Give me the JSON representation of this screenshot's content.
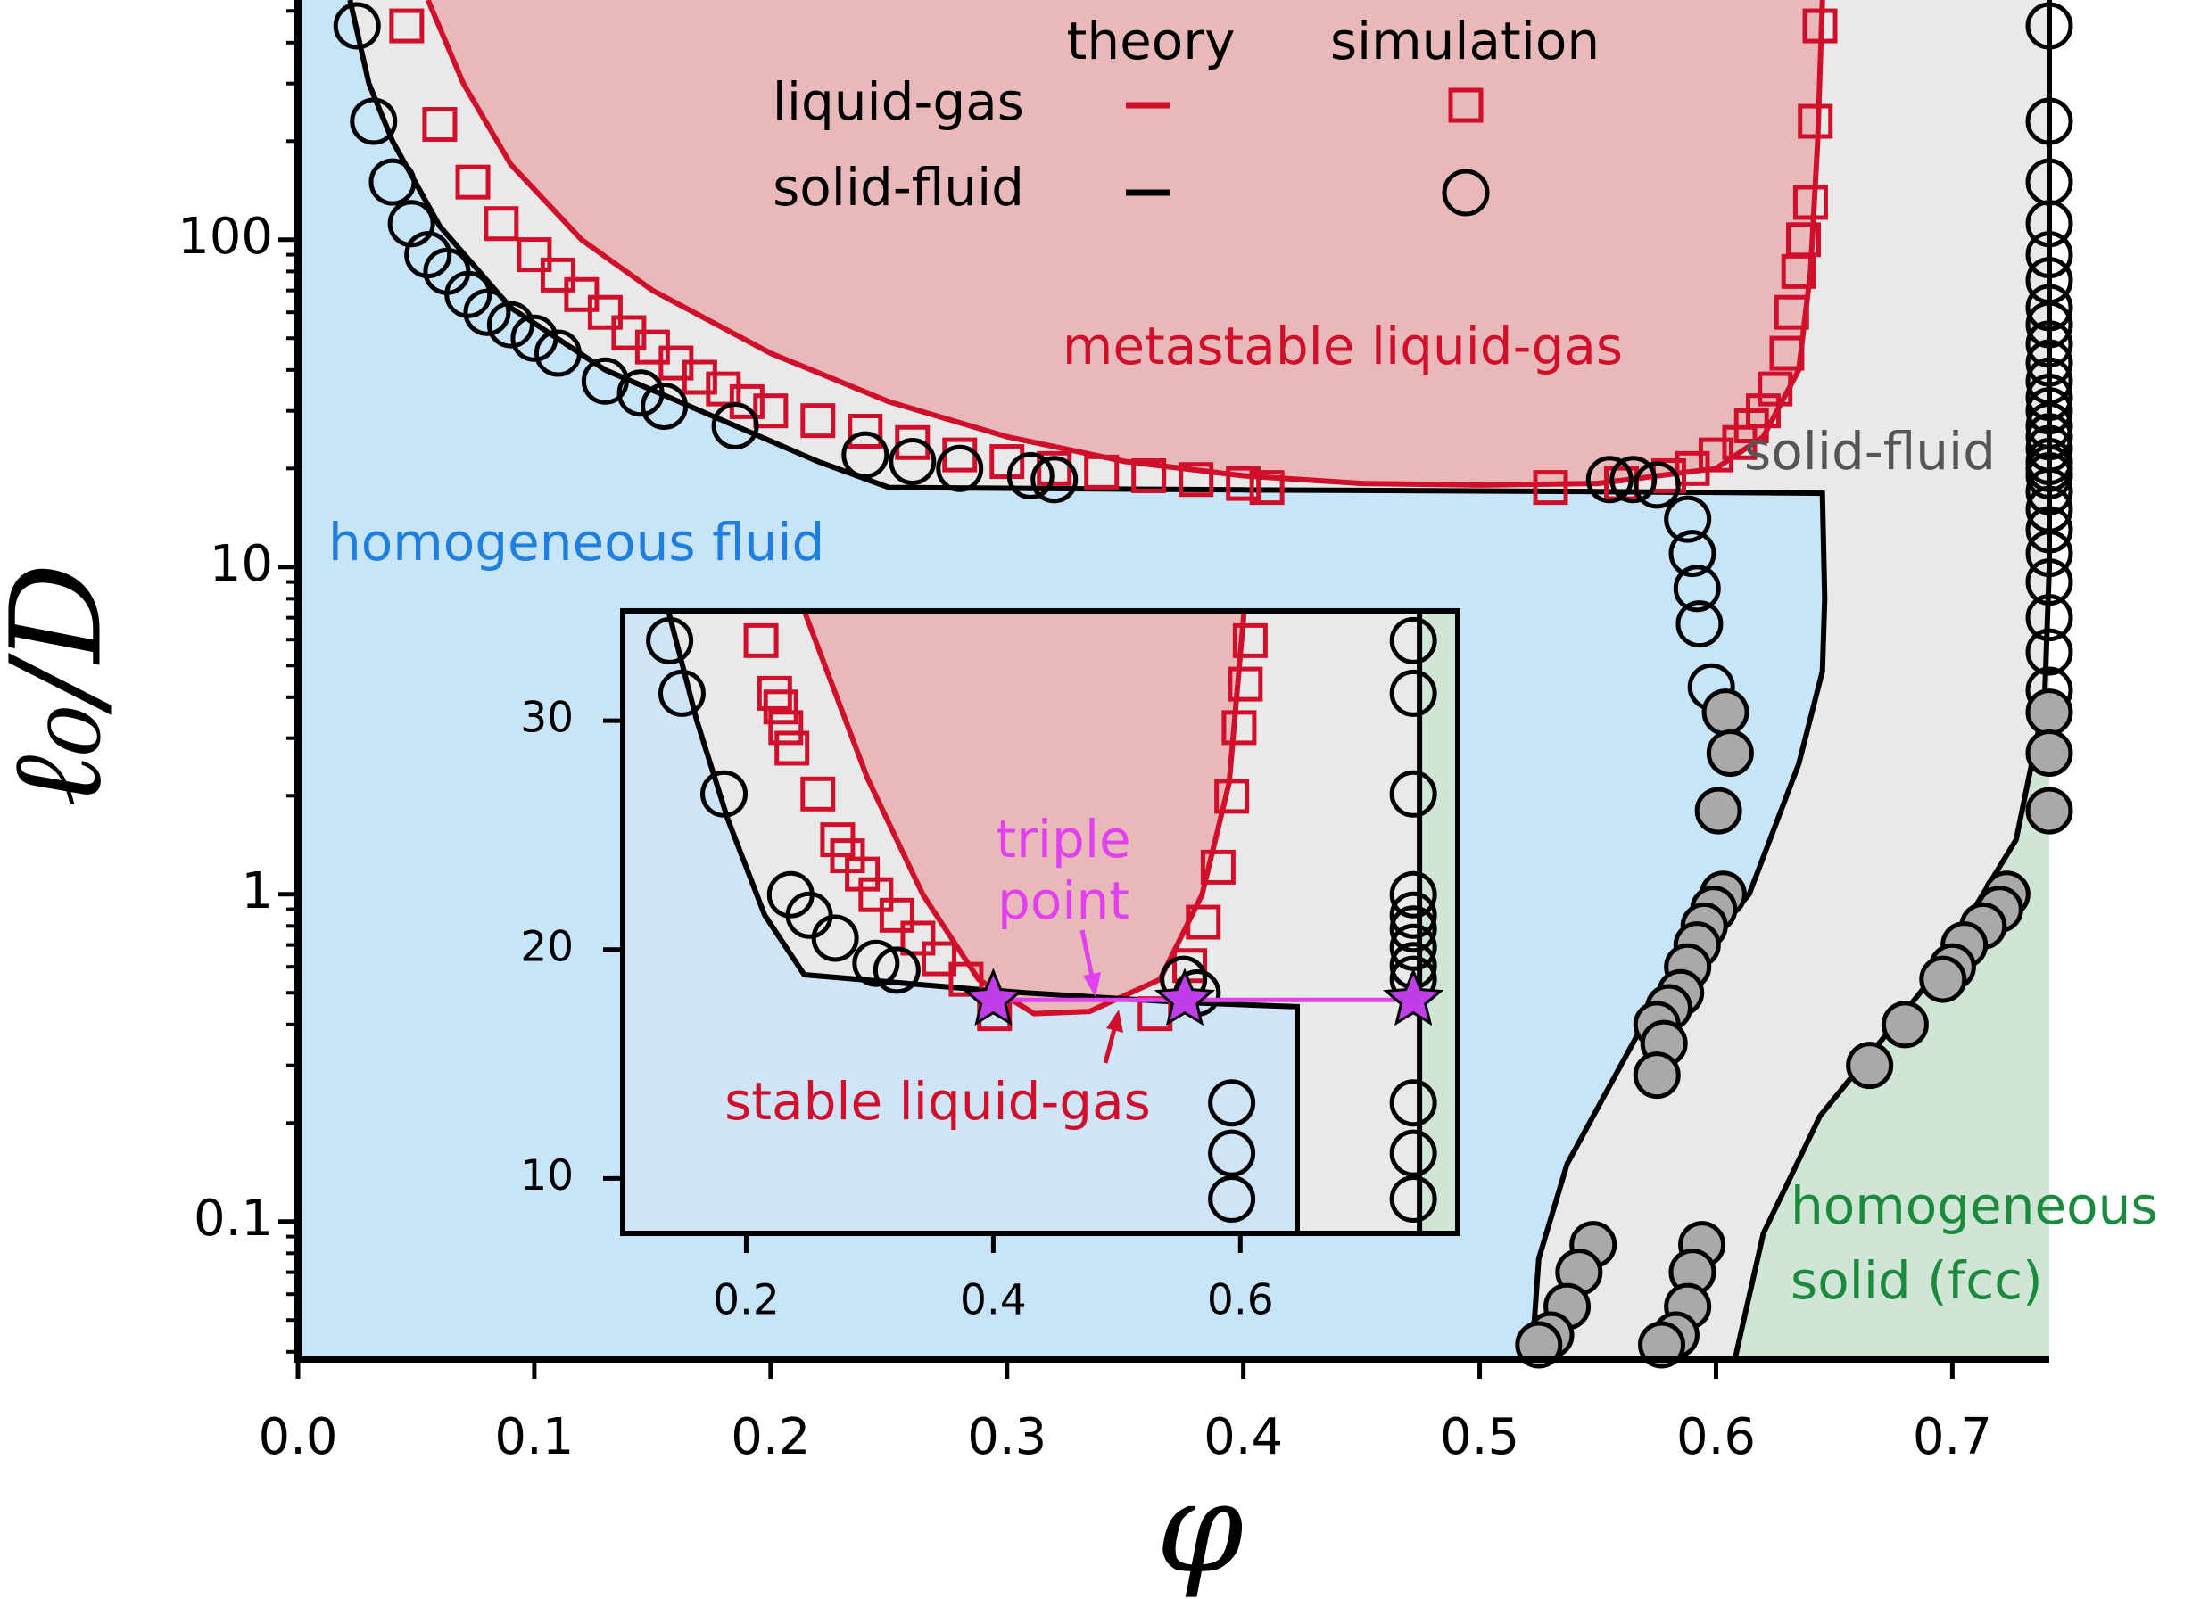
{
  "chart_data": [
    {
      "type": "phase-diagram",
      "x_label": "φ",
      "y_label": "ℓ₀/D",
      "ylog": true,
      "xlim": [
        0,
        0.741
      ],
      "ylim": [
        0.038,
        540
      ],
      "xticks": [
        {
          "value": 0,
          "label": "0.0"
        },
        0.1,
        0.2,
        0.3,
        0.4,
        0.5,
        0.6,
        0.7
      ],
      "yticks": [
        0.1,
        1,
        10,
        100
      ],
      "yminorticks": [
        0.04,
        0.05,
        0.06,
        0.07,
        0.08,
        0.09,
        0.2,
        0.3,
        0.4,
        0.5,
        0.6,
        0.7,
        0.8,
        0.9,
        2,
        3,
        4,
        5,
        6,
        7,
        8,
        9,
        20,
        30,
        40,
        50,
        60,
        70,
        80,
        90,
        200,
        300,
        400,
        500
      ],
      "legend": {
        "headers": [
          "theory",
          "simulation"
        ],
        "rows": [
          "liquid-gas",
          "solid-fluid"
        ]
      },
      "annotations": [
        "metastable liquid-gas",
        "solid-fluid",
        "homogeneous fluid",
        "homogeneous",
        "solid (fcc)"
      ],
      "series": [
        {
          "line": true,
          "color": "#d0102a",
          "x": [
            0.055,
            0.07,
            0.09,
            0.12,
            0.15,
            0.2,
            0.25,
            0.3,
            0.35,
            0.4,
            0.45,
            0.5,
            0.55,
            0.6,
            0.62,
            0.635,
            0.64,
            0.643,
            0.645
          ],
          "values": [
            540,
            300,
            170,
            100,
            70,
            45,
            32,
            25,
            21,
            19,
            18,
            17.8,
            18,
            20,
            25,
            40,
            80,
            200,
            540
          ]
        },
        {
          "line": true,
          "color": "#000000",
          "x": [
            0.022,
            0.03,
            0.04,
            0.06,
            0.09,
            0.13,
            0.18,
            0.22,
            0.25,
            0.4,
            0.55,
            0.645,
            0.646,
            0.645,
            0.635,
            0.614,
            0.573,
            0.537,
            0.525,
            0.522
          ],
          "values": [
            540,
            300,
            200,
            110,
            62,
            40,
            28,
            21,
            17.5,
            17.2,
            17,
            16.8,
            8,
            4.8,
            2.5,
            1.0,
            0.45,
            0.15,
            0.077,
            0.038
          ]
        },
        {
          "line": true,
          "color": "#000000",
          "x": [
            0.741,
            0.741,
            0.739,
            0.727,
            0.691,
            0.644,
            0.62,
            0.608
          ],
          "values": [
            540,
            10,
            3.9,
            1.47,
            0.55,
            0.21,
            0.092,
            0.038
          ]
        },
        {
          "marker": "square",
          "color": "#d0102a",
          "fill": "none",
          "x": [
            0.046,
            0.06,
            0.074,
            0.086,
            0.1,
            0.11,
            0.12,
            0.13,
            0.14,
            0.15,
            0.16,
            0.17,
            0.18,
            0.19,
            0.2,
            0.22,
            0.24,
            0.26,
            0.28,
            0.3,
            0.32,
            0.34,
            0.36,
            0.38,
            0.4,
            0.41,
            0.53,
            0.56,
            0.58,
            0.59,
            0.6,
            0.61,
            0.615,
            0.62,
            0.625,
            0.63,
            0.632,
            0.635,
            0.637,
            0.64,
            0.642,
            0.644
          ],
          "values": [
            450,
            225,
            150,
            112,
            90,
            78,
            68,
            60,
            52,
            47,
            42,
            38,
            35,
            32,
            30,
            28,
            26,
            24,
            22,
            21,
            20,
            19.5,
            19,
            18.5,
            18,
            17.5,
            17.5,
            18,
            19,
            20,
            22,
            24,
            27,
            30,
            35,
            45,
            60,
            80,
            100,
            130,
            230,
            450
          ]
        },
        {
          "marker": "circle",
          "color": "#000000",
          "fill": "none",
          "x": [
            0.025,
            0.032,
            0.04,
            0.048,
            0.055,
            0.063,
            0.072,
            0.08,
            0.09,
            0.1,
            0.11,
            0.13,
            0.145,
            0.155,
            0.185,
            0.24,
            0.26,
            0.28,
            0.31,
            0.32,
            0.555,
            0.565,
            0.575,
            0.588,
            0.59,
            0.592,
            0.593,
            0.598,
            0.741,
            0.741,
            0.741,
            0.741,
            0.741,
            0.741,
            0.741,
            0.741,
            0.741,
            0.741,
            0.741,
            0.741,
            0.741,
            0.741,
            0.741,
            0.741,
            0.741,
            0.741,
            0.741,
            0.741,
            0.741,
            0.741,
            0.741,
            0.741,
            0.741,
            0.741,
            0.741
          ],
          "values": [
            450,
            230,
            150,
            112,
            90,
            80,
            68,
            60,
            55,
            50,
            45,
            37,
            34,
            31,
            27,
            22,
            21,
            20,
            19,
            18.5,
            18.5,
            18.5,
            17.8,
            14,
            11,
            8.6,
            6.7,
            4.3,
            450,
            230,
            150,
            112,
            90,
            75,
            62,
            55,
            48,
            42,
            37,
            33,
            30,
            27,
            25,
            23,
            21,
            20,
            19,
            17,
            15,
            13,
            11,
            9,
            7,
            5.5,
            4.2
          ]
        },
        {
          "marker": "circle",
          "color": "#000000",
          "fill": "#a9a9a9",
          "x": [
            0.604,
            0.606,
            0.601,
            0.603,
            0.599,
            0.595,
            0.592,
            0.588,
            0.585,
            0.58,
            0.575,
            0.578,
            0.575,
            0.548,
            0.542,
            0.537,
            0.53,
            0.525,
            0.594,
            0.59,
            0.588,
            0.583,
            0.577,
            0.741,
            0.741,
            0.741,
            0.723,
            0.72,
            0.713,
            0.705,
            0.7,
            0.696,
            0.68,
            0.665
          ],
          "values": [
            3.6,
            2.7,
            1.8,
            1.0,
            0.9,
            0.8,
            0.7,
            0.6,
            0.5,
            0.45,
            0.4,
            0.35,
            0.28,
            0.085,
            0.07,
            0.055,
            0.045,
            0.042,
            0.085,
            0.07,
            0.055,
            0.045,
            0.042,
            3.6,
            2.7,
            1.8,
            1.0,
            0.9,
            0.8,
            0.7,
            0.6,
            0.55,
            0.4,
            0.3
          ]
        }
      ]
    },
    {
      "type": "phase-diagram-inset",
      "ylog": false,
      "xlim": [
        0.1,
        0.776
      ],
      "ylim": [
        7.6,
        34.8
      ],
      "xticks": [
        0.2,
        0.4,
        0.6
      ],
      "yticks": [
        10,
        20,
        30
      ],
      "annotations": [
        "triple",
        "point",
        "stable liquid-gas"
      ],
      "series": [
        {
          "line": true,
          "color": "#d0102a",
          "x": [
            0.247,
            0.298,
            0.343,
            0.388,
            0.433,
            0.478,
            0.535,
            0.569,
            0.591,
            0.603
          ],
          "values": [
            34.8,
            27.5,
            22.4,
            18.7,
            17.2,
            17.3,
            18.7,
            22.4,
            27.3,
            34.8
          ]
        },
        {
          "line": true,
          "color": "#000000",
          "x": [
            0.137,
            0.16,
            0.185,
            0.215,
            0.247,
            0.4,
            0.55,
            0.646,
            0.646
          ],
          "values": [
            34.8,
            30,
            25.7,
            21.5,
            18.9,
            18.2,
            17.7,
            17.5,
            7.6
          ]
        },
        {
          "line": true,
          "color": "#000000",
          "x": [
            0.745,
            0.745
          ],
          "values": [
            34.8,
            7.6
          ]
        },
        {
          "marker": "square",
          "color": "#d0102a",
          "fill": "none",
          "x": [
            0.212,
            0.223,
            0.228,
            0.232,
            0.237,
            0.258,
            0.274,
            0.282,
            0.294,
            0.305,
            0.322,
            0.339,
            0.356,
            0.378,
            0.401,
            0.531,
            0.559,
            0.57,
            0.582,
            0.593,
            0.599,
            0.604,
            0.608
          ],
          "values": [
            33.5,
            31.2,
            30.6,
            29.7,
            28.8,
            26.8,
            24.8,
            24.1,
            23.3,
            22.4,
            21.5,
            20.5,
            19.6,
            18.7,
            17.2,
            17.2,
            19.3,
            21.2,
            23.6,
            26.7,
            29.7,
            31.6,
            33.5
          ]
        },
        {
          "marker": "circle",
          "color": "#000000",
          "fill": "none",
          "x": [
            0.138,
            0.148,
            0.182,
            0.236,
            0.251,
            0.272,
            0.305,
            0.322,
            0.554,
            0.565,
            0.593,
            0.593,
            0.593,
            0.74,
            0.74,
            0.74,
            0.74,
            0.74,
            0.74,
            0.74,
            0.74,
            0.74,
            0.74,
            0.74,
            0.74
          ],
          "values": [
            33.5,
            31.2,
            26.8,
            22.4,
            21.5,
            20.5,
            19.4,
            19.1,
            18.7,
            18.1,
            13.3,
            11.1,
            9.1,
            33.5,
            31.2,
            26.8,
            22.4,
            21.5,
            20.9,
            20.1,
            19.3,
            18.7,
            13.3,
            11.1,
            9.1
          ]
        },
        {
          "line": true,
          "marker": "star",
          "color": "#e040f0",
          "fill": "#c03ee8",
          "x": [
            0.4,
            0.555,
            0.74
          ],
          "values": [
            17.8,
            17.8,
            17.8
          ]
        }
      ]
    }
  ]
}
